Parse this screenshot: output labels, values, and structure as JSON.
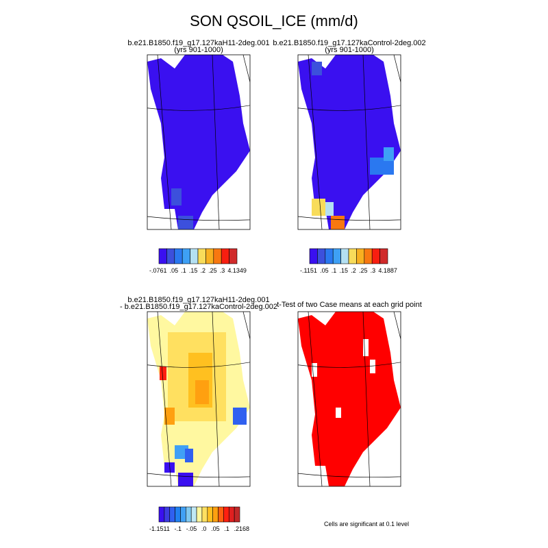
{
  "title": "SON QSOIL_ICE (mm/d)",
  "panels": [
    {
      "title": [
        "b.e21.B1850.f19_g17.127kaH11-2deg.001",
        "(yrs 901-1000)"
      ],
      "colorbar": {
        "colors": [
          "#3a10f0",
          "#3c50dc",
          "#2a78f0",
          "#3ea0f5",
          "#b4e0f2",
          "#f8dc5a",
          "#f8b020",
          "#f87810",
          "#f81e10",
          "#d02a2a"
        ],
        "labels": [
          "-.0761",
          ".05",
          ".1",
          ".15",
          ".2",
          ".25",
          ".3",
          "4.1349"
        ]
      }
    },
    {
      "title": [
        "b.e21.B1850.f19_g17.127kaControl-2deg.002",
        "(yrs 901-1000)"
      ],
      "colorbar": {
        "colors": [
          "#3a10f0",
          "#3c50dc",
          "#2a78f0",
          "#3ea0f5",
          "#b4e0f2",
          "#f8dc5a",
          "#f8b020",
          "#f87810",
          "#f81e10",
          "#d02a2a"
        ],
        "labels": [
          "-.1151",
          ".05",
          ".1",
          ".15",
          ".2",
          ".25",
          ".3",
          "4.1887"
        ]
      }
    },
    {
      "title": [
        "b.e21.B1850.f19_g17.127kaH11-2deg.001",
        "- b.e21.B1850.f19_g17.127kaControl-2deg.002"
      ],
      "colorbar": {
        "colors": [
          "#3a10f0",
          "#3c3ce0",
          "#3060f0",
          "#2080f0",
          "#40a0f5",
          "#80c8f0",
          "#c0e8f5",
          "#fff8a0",
          "#ffe060",
          "#ffc020",
          "#ffa010",
          "#ff6010",
          "#ff2010",
          "#e02020",
          "#c02828"
        ],
        "labels": [
          "-1.1511",
          "-.1",
          "-.05",
          ".0",
          ".05",
          ".1",
          ".2168"
        ]
      }
    },
    {
      "title": [
        "t-Test of two Case means at each grid point"
      ],
      "footnote": "Cells are significant at 0.1 level"
    }
  ]
}
